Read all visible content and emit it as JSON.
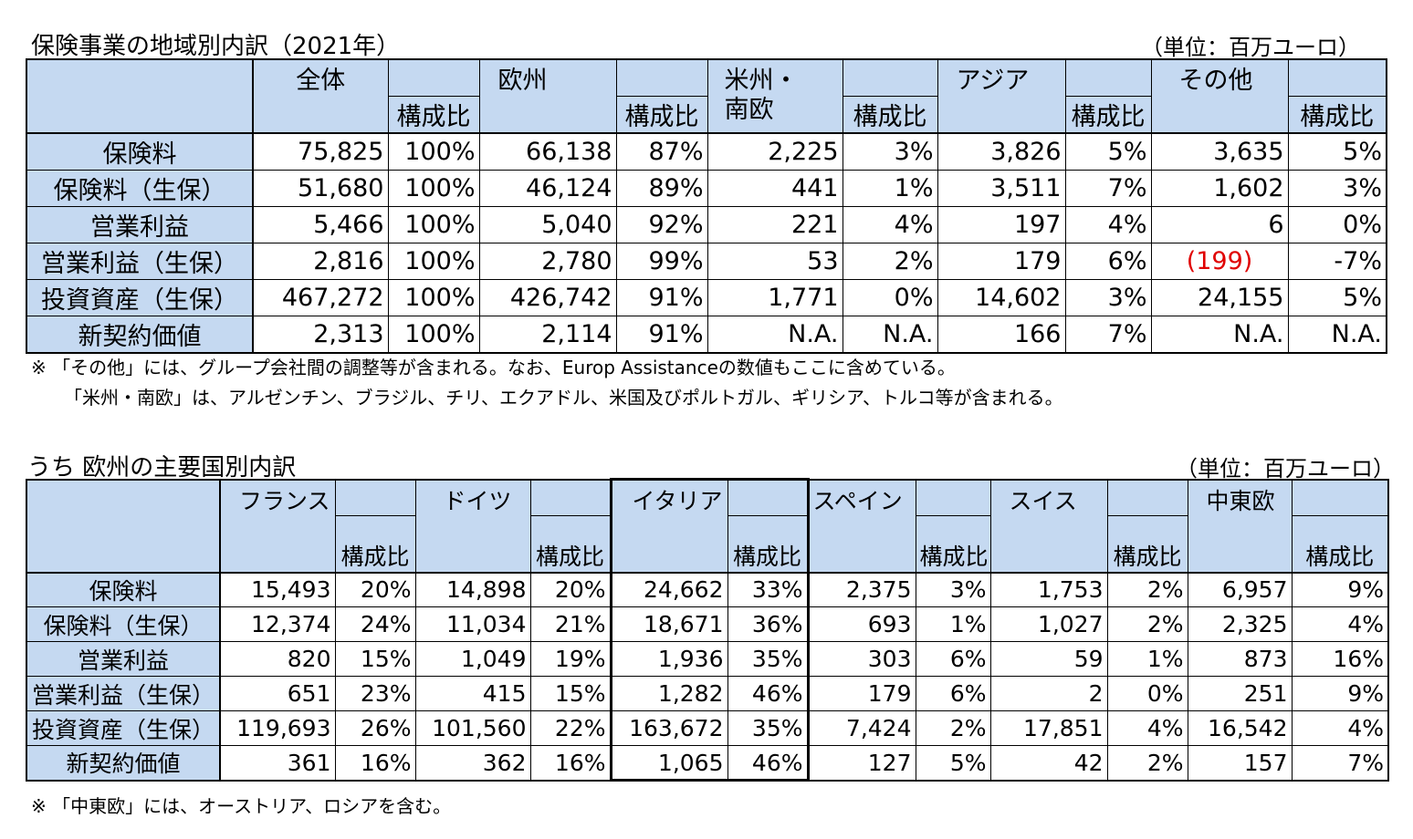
{
  "table1": {
    "title": "保険事業の地域別内訳（2021年）",
    "unit": "（単位：百万ユーロ）",
    "groups": [
      "全体",
      "欧州",
      "米州・\n南欧",
      "アジア",
      "その他"
    ],
    "ratio_label": "構成比",
    "rows": [
      {
        "label": "保険料",
        "cells": [
          "75,825",
          "100%",
          "66,138",
          "87%",
          "2,225",
          "3%",
          "3,826",
          "5%",
          "3,635",
          "5%"
        ]
      },
      {
        "label": "保険料（生保）",
        "cells": [
          "51,680",
          "100%",
          "46,124",
          "89%",
          "441",
          "1%",
          "3,511",
          "7%",
          "1,602",
          "3%"
        ]
      },
      {
        "label": "営業利益",
        "cells": [
          "5,466",
          "100%",
          "5,040",
          "92%",
          "221",
          "4%",
          "197",
          "4%",
          "6",
          "0%"
        ]
      },
      {
        "label": "営業利益（生保）",
        "cells": [
          "2,816",
          "100%",
          "2,780",
          "99%",
          "53",
          "2%",
          "179",
          "6%",
          "(199)",
          "-7%"
        ]
      },
      {
        "label": "投資資産（生保）",
        "cells": [
          "467,272",
          "100%",
          "426,742",
          "91%",
          "1,771",
          "0%",
          "14,602",
          "3%",
          "24,155",
          "5%"
        ]
      },
      {
        "label": "新契約価値",
        "cells": [
          "2,313",
          "100%",
          "2,114",
          "91%",
          "N.A.",
          "N.A.",
          "166",
          "7%",
          "N.A.",
          "N.A."
        ]
      }
    ],
    "notes": [
      "※ 「その他」には、グループ会社間の調整等が含まれる。なお、Europ Assistanceの数値もここに含めている。",
      "「米州・南欧」は、アルゼンチン、ブラジル、チリ、エクアドル、米国及びポルトガル、ギリシア、トルコ等が含まれる。"
    ]
  },
  "table2": {
    "title": "うち 欧州の主要国別内訳",
    "unit": "（単位：百万ユーロ）",
    "groups": [
      "フランス",
      "ドイツ",
      "イタリア",
      "スペイン",
      "スイス",
      "中東欧"
    ],
    "ratio_label": "構成比",
    "rows": [
      {
        "label": "保険料",
        "cells": [
          "15,493",
          "20%",
          "14,898",
          "20%",
          "24,662",
          "33%",
          "2,375",
          "3%",
          "1,753",
          "2%",
          "6,957",
          "9%"
        ]
      },
      {
        "label": "保険料（生保）",
        "cells": [
          "12,374",
          "24%",
          "11,034",
          "21%",
          "18,671",
          "36%",
          "693",
          "1%",
          "1,027",
          "2%",
          "2,325",
          "4%"
        ]
      },
      {
        "label": "営業利益",
        "cells": [
          "820",
          "15%",
          "1,049",
          "19%",
          "1,936",
          "35%",
          "303",
          "6%",
          "59",
          "1%",
          "873",
          "16%"
        ]
      },
      {
        "label": "営業利益（生保）",
        "cells": [
          "651",
          "23%",
          "415",
          "15%",
          "1,282",
          "46%",
          "179",
          "6%",
          "2",
          "0%",
          "251",
          "9%"
        ]
      },
      {
        "label": "投資資産（生保）",
        "cells": [
          "119,693",
          "26%",
          "101,560",
          "22%",
          "163,672",
          "35%",
          "7,424",
          "2%",
          "17,851",
          "4%",
          "16,542",
          "4%"
        ]
      },
      {
        "label": "新契約価値",
        "cells": [
          "361",
          "16%",
          "362",
          "16%",
          "1,065",
          "46%",
          "127",
          "5%",
          "42",
          "2%",
          "157",
          "7%"
        ]
      }
    ],
    "notes": [
      "※ 「中東欧」には、オーストリア、ロシアを含む。"
    ]
  },
  "colors": {
    "header_fill": "#c5d9f1",
    "negative_text": "#e00000"
  }
}
